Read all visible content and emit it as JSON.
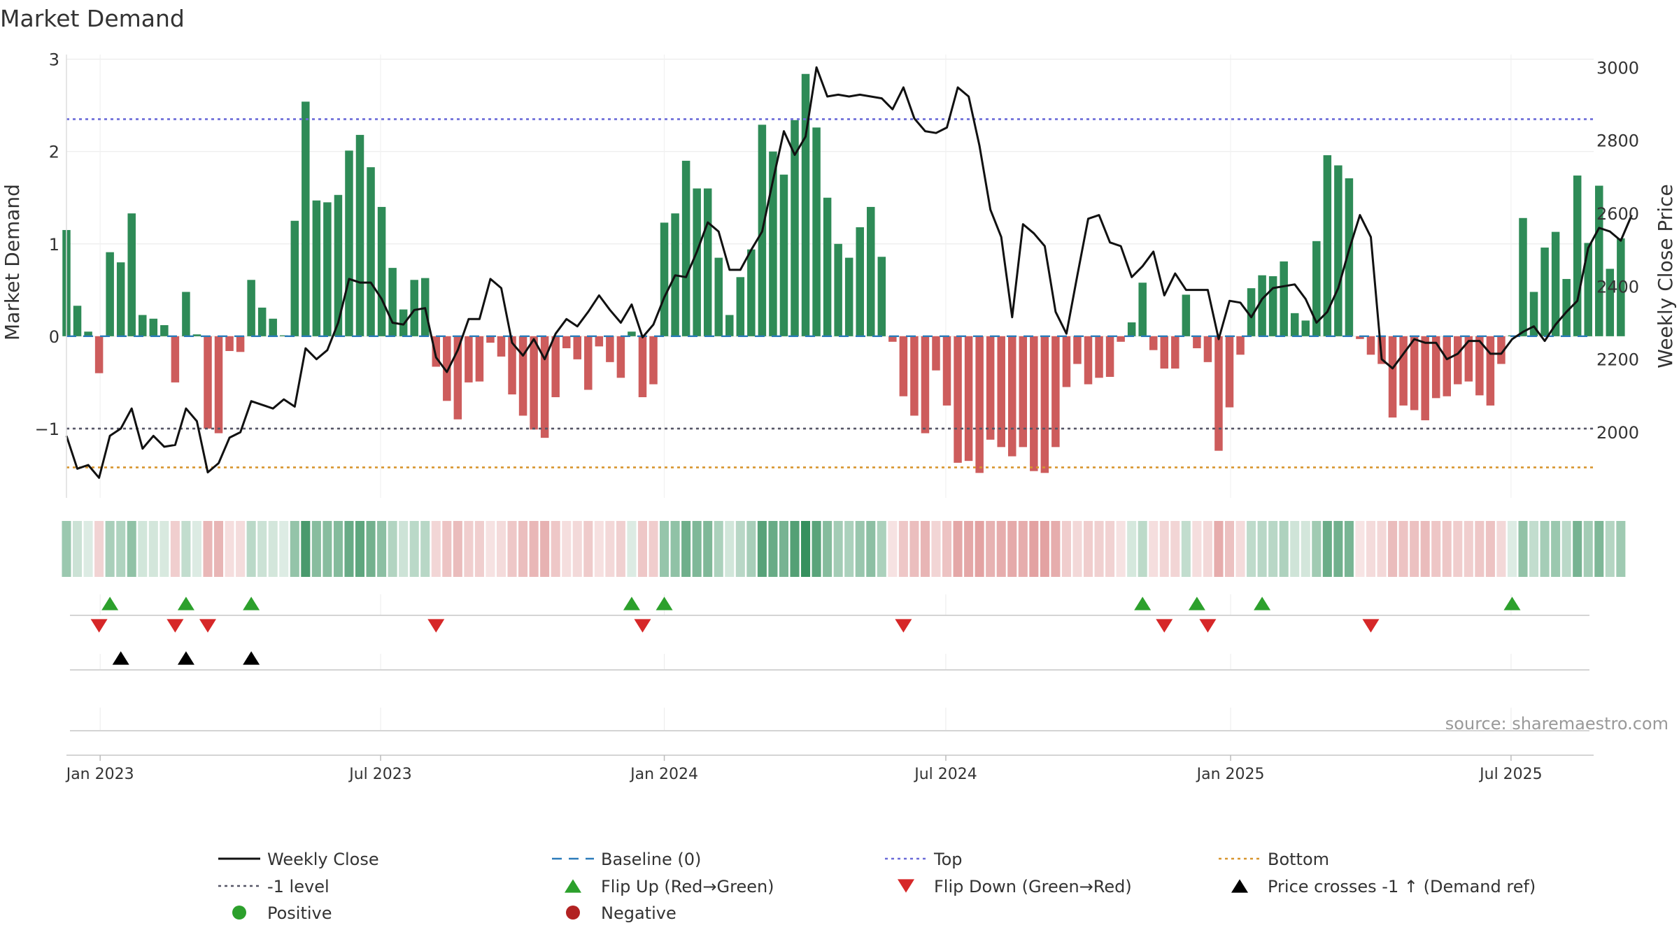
{
  "title": "Market Demand",
  "source": "source: sharemaestro.com",
  "chart_data": {
    "type": "bar+line",
    "title": "Market Demand",
    "ylabel_left": "Market Demand",
    "ylabel_right": "Weekly Close Price",
    "ylim_left": [
      -1.75,
      3.05
    ],
    "ylim_right": [
      1820,
      3035
    ],
    "yticks_left": [
      3,
      2,
      1,
      0,
      -1
    ],
    "yticks_left_labels": [
      "3",
      "2",
      "1",
      "0",
      "−1"
    ],
    "yticks_right": [
      3000,
      2800,
      2600,
      2400,
      2200,
      2000
    ],
    "yticks_right_labels": [
      "3000",
      "2800",
      "2600",
      "2400",
      "2200",
      "2000"
    ],
    "x_range": [
      0,
      140.5
    ],
    "x_ticks": [
      {
        "week": 3.1,
        "label": "Jan 2023"
      },
      {
        "week": 28.9,
        "label": "Jul 2023"
      },
      {
        "week": 55.0,
        "label": "Jan 2024"
      },
      {
        "week": 80.9,
        "label": "Jul 2024"
      },
      {
        "week": 107.1,
        "label": "Jan 2025"
      },
      {
        "week": 132.9,
        "label": "Jul 2025"
      }
    ],
    "reference_lines": {
      "top": 2.35,
      "minus_one": -1.0,
      "bottom": -1.42,
      "baseline": 0
    },
    "colors": {
      "positive": "#2e8b57",
      "negative": "#cd5c5c",
      "close": "#111111",
      "baseline": "#2b7bba",
      "top": "#6a6ad8",
      "minus_one": "#555566",
      "bottom": "#d8952e",
      "flip_up": "#2ca02c",
      "flip_down": "#d62728",
      "price_cross": "#000000",
      "legend_positive": "#2ca02c",
      "legend_negative": "#b22222"
    },
    "demand": [
      1.15,
      0.33,
      0.05,
      -0.4,
      0.91,
      0.8,
      1.33,
      0.23,
      0.19,
      0.12,
      -0.5,
      0.48,
      0.02,
      -1.0,
      -1.05,
      -0.16,
      -0.17,
      0.61,
      0.31,
      0.19,
      0.01,
      1.25,
      2.54,
      1.47,
      1.45,
      1.53,
      2.01,
      2.18,
      1.83,
      1.4,
      0.74,
      0.29,
      0.61,
      0.63,
      -0.33,
      -0.7,
      -0.9,
      -0.5,
      -0.49,
      -0.07,
      -0.22,
      -0.63,
      -0.86,
      -1.01,
      -1.1,
      -0.66,
      -0.13,
      -0.25,
      -0.58,
      -0.11,
      -0.28,
      -0.45,
      0.05,
      -0.66,
      -0.52,
      1.23,
      1.33,
      1.9,
      1.6,
      1.6,
      0.85,
      0.23,
      0.64,
      0.94,
      2.29,
      2.0,
      1.75,
      2.34,
      2.84,
      2.26,
      1.5,
      1.0,
      0.85,
      1.18,
      1.4,
      0.86,
      -0.06,
      -0.65,
      -0.86,
      -1.05,
      -0.37,
      -0.75,
      -1.37,
      -1.35,
      -1.48,
      -1.12,
      -1.2,
      -1.3,
      -1.2,
      -1.46,
      -1.48,
      -1.2,
      -0.55,
      -0.3,
      -0.52,
      -0.45,
      -0.44,
      -0.06,
      0.15,
      0.58,
      -0.15,
      -0.35,
      -0.35,
      0.45,
      -0.13,
      -0.28,
      -1.24,
      -0.77,
      -0.2,
      0.52,
      0.66,
      0.65,
      0.81,
      0.25,
      0.17,
      1.03,
      1.96,
      1.85,
      1.71,
      -0.03,
      -0.2,
      -0.3,
      -0.88,
      -0.75,
      -0.8,
      -0.91,
      -0.67,
      -0.65,
      -0.52,
      -0.49,
      -0.64,
      -0.75,
      -0.3,
      0.01,
      1.28,
      0.48,
      0.96,
      1.13,
      0.62,
      1.74,
      1.01,
      1.63,
      0.73,
      1.06
    ],
    "close": [
      1990,
      1900,
      1910,
      1875,
      1990,
      2010,
      2065,
      1955,
      1990,
      1960,
      1965,
      2065,
      2030,
      1890,
      1915,
      1985,
      2000,
      2085,
      2075,
      2065,
      2090,
      2070,
      2230,
      2200,
      2225,
      2300,
      2420,
      2410,
      2410,
      2365,
      2300,
      2295,
      2335,
      2340,
      2205,
      2165,
      2225,
      2310,
      2310,
      2420,
      2395,
      2245,
      2210,
      2255,
      2200,
      2270,
      2310,
      2290,
      2330,
      2375,
      2335,
      2300,
      2350,
      2260,
      2295,
      2370,
      2430,
      2425,
      2495,
      2575,
      2550,
      2445,
      2445,
      2500,
      2550,
      2690,
      2825,
      2760,
      2810,
      3000,
      2920,
      2925,
      2920,
      2925,
      2920,
      2915,
      2885,
      2945,
      2860,
      2825,
      2820,
      2835,
      2945,
      2920,
      2785,
      2610,
      2535,
      2315,
      2570,
      2545,
      2510,
      2330,
      2270,
      2430,
      2585,
      2595,
      2520,
      2510,
      2425,
      2455,
      2495,
      2375,
      2435,
      2390,
      2390,
      2390,
      2255,
      2360,
      2355,
      2315,
      2365,
      2395,
      2400,
      2405,
      2365,
      2300,
      2330,
      2395,
      2500,
      2595,
      2535,
      2200,
      2175,
      2215,
      2255,
      2245,
      2245,
      2200,
      2215,
      2250,
      2250,
      2215,
      2215,
      2255,
      2275,
      2290,
      2250,
      2295,
      2330,
      2360,
      2505,
      2560,
      2550,
      2525,
      2595
    ],
    "flip_up_weeks": [
      4,
      11,
      17,
      52,
      55,
      99,
      104,
      110,
      133
    ],
    "flip_down_weeks": [
      3,
      10,
      13,
      34,
      53,
      77,
      101,
      105,
      120
    ],
    "price_cross_weeks": [
      5,
      11,
      17
    ],
    "legend": [
      {
        "label": "Weekly Close",
        "symbol": "solid-line",
        "color_key": "close"
      },
      {
        "label": "Baseline (0)",
        "symbol": "dashed-line",
        "color_key": "baseline"
      },
      {
        "label": "Top",
        "symbol": "dotted-line",
        "color_key": "top"
      },
      {
        "label": "Bottom",
        "symbol": "dotted-line",
        "color_key": "bottom"
      },
      {
        "label": "-1 level",
        "symbol": "dotted-line",
        "color_key": "minus_one"
      },
      {
        "label": "Flip Up (Red→Green)",
        "symbol": "triangle-up",
        "color_key": "flip_up"
      },
      {
        "label": "Flip Down (Green→Red)",
        "symbol": "triangle-down",
        "color_key": "flip_down"
      },
      {
        "label": "Price crosses -1 ↑ (Demand ref)",
        "symbol": "triangle-up",
        "color_key": "price_cross"
      },
      {
        "label": "Positive",
        "symbol": "circle",
        "color_key": "legend_positive"
      },
      {
        "label": "Negative",
        "symbol": "circle",
        "color_key": "legend_negative"
      }
    ]
  }
}
